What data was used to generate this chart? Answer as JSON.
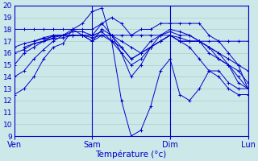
{
  "xlabel": "Température (°c)",
  "xlim": [
    0,
    72
  ],
  "ylim": [
    9,
    20
  ],
  "yticks": [
    9,
    10,
    11,
    12,
    13,
    14,
    15,
    16,
    17,
    18,
    19,
    20
  ],
  "xtick_positions": [
    0,
    24,
    48,
    72
  ],
  "xtick_labels": [
    "Ven",
    "Sam",
    "Dim",
    "Lun"
  ],
  "bg_color": "#cde8e8",
  "grid_color": "#a0c8c8",
  "line_color": "#0000cc",
  "series": [
    {
      "x": [
        0,
        3,
        6,
        9,
        12,
        15,
        18,
        21,
        24,
        27,
        30,
        33,
        36,
        39,
        42,
        45,
        48,
        51,
        54,
        57,
        60,
        63,
        66,
        69,
        72
      ],
      "y": [
        12.5,
        13.0,
        14.0,
        15.5,
        16.5,
        16.8,
        18.0,
        18.5,
        19.5,
        19.8,
        17.0,
        12.0,
        9.0,
        9.5,
        11.5,
        14.5,
        15.5,
        12.5,
        12.0,
        13.0,
        14.5,
        14.5,
        13.5,
        13.0,
        13.0
      ]
    },
    {
      "x": [
        0,
        3,
        6,
        9,
        12,
        15,
        18,
        21,
        24,
        27,
        30,
        33,
        36,
        39,
        42,
        45,
        48,
        51,
        54,
        57,
        60,
        63,
        66,
        69,
        72
      ],
      "y": [
        14.0,
        14.5,
        15.5,
        16.3,
        17.0,
        17.5,
        17.5,
        17.5,
        17.5,
        17.8,
        17.0,
        16.0,
        15.0,
        15.5,
        16.5,
        17.0,
        17.5,
        17.0,
        16.5,
        15.5,
        14.5,
        14.0,
        13.0,
        12.5,
        12.5
      ]
    },
    {
      "x": [
        0,
        3,
        6,
        9,
        12,
        15,
        18,
        21,
        24,
        27,
        30,
        33,
        36,
        39,
        42,
        45,
        48,
        51,
        54,
        57,
        60,
        63,
        66,
        69,
        72
      ],
      "y": [
        16.0,
        16.3,
        16.8,
        17.0,
        17.3,
        17.5,
        17.8,
        17.8,
        17.5,
        18.5,
        17.5,
        16.0,
        14.0,
        15.0,
        16.5,
        17.5,
        17.8,
        17.5,
        17.5,
        17.0,
        16.5,
        15.5,
        15.0,
        13.5,
        13.0
      ]
    },
    {
      "x": [
        0,
        3,
        6,
        9,
        12,
        15,
        18,
        21,
        24,
        27,
        30,
        33,
        36,
        39,
        42,
        45,
        48,
        51,
        54,
        57,
        60,
        63,
        66,
        69,
        72
      ],
      "y": [
        16.5,
        16.8,
        17.0,
        17.3,
        17.5,
        17.5,
        18.0,
        17.5,
        17.0,
        18.0,
        17.5,
        16.5,
        15.5,
        16.0,
        17.0,
        17.5,
        18.0,
        17.8,
        17.5,
        17.0,
        16.5,
        16.0,
        15.0,
        14.0,
        13.0
      ]
    },
    {
      "x": [
        0,
        3,
        6,
        9,
        12,
        15,
        18,
        21,
        24,
        27,
        30,
        33,
        36,
        39,
        42,
        45,
        48,
        51,
        54,
        57,
        60,
        63,
        66,
        69,
        72
      ],
      "y": [
        15.0,
        16.0,
        16.5,
        17.0,
        17.5,
        17.5,
        17.5,
        17.5,
        17.5,
        17.5,
        17.5,
        17.5,
        17.5,
        17.5,
        17.5,
        17.5,
        17.5,
        17.0,
        17.0,
        17.0,
        17.0,
        17.0,
        17.0,
        17.0,
        17.0
      ]
    },
    {
      "x": [
        0,
        3,
        6,
        9,
        12,
        15,
        18,
        21,
        24,
        27,
        30,
        33,
        36,
        39,
        42,
        45,
        48,
        51,
        54,
        57,
        60,
        63,
        66,
        69,
        72
      ],
      "y": [
        18.0,
        18.0,
        18.0,
        18.0,
        18.0,
        18.0,
        18.0,
        18.0,
        18.0,
        18.5,
        19.0,
        18.5,
        17.5,
        18.0,
        18.0,
        18.5,
        18.5,
        18.5,
        18.5,
        18.5,
        17.5,
        17.0,
        16.0,
        15.0,
        13.0
      ]
    },
    {
      "x": [
        3,
        6,
        9,
        12,
        15,
        18,
        21,
        24,
        27,
        30,
        33,
        36,
        39,
        42,
        45,
        48,
        51,
        54,
        57,
        60,
        63,
        66,
        69,
        72
      ],
      "y": [
        16.5,
        16.8,
        17.0,
        17.2,
        17.3,
        17.5,
        17.5,
        17.0,
        17.5,
        17.0,
        16.5,
        15.5,
        16.0,
        16.5,
        17.0,
        17.5,
        17.3,
        17.0,
        17.0,
        16.0,
        15.5,
        15.0,
        14.5,
        13.5
      ]
    },
    {
      "x": [
        6,
        9,
        12,
        15,
        18,
        21,
        24,
        27,
        30,
        33,
        36,
        39,
        42,
        45,
        48,
        51,
        54,
        57,
        60,
        63,
        66,
        69,
        72
      ],
      "y": [
        17.0,
        17.2,
        17.4,
        17.5,
        17.5,
        17.5,
        17.3,
        17.5,
        17.5,
        17.0,
        16.5,
        16.0,
        16.5,
        17.0,
        17.5,
        17.0,
        17.0,
        17.0,
        16.5,
        16.0,
        15.5,
        15.0,
        14.5
      ]
    }
  ]
}
